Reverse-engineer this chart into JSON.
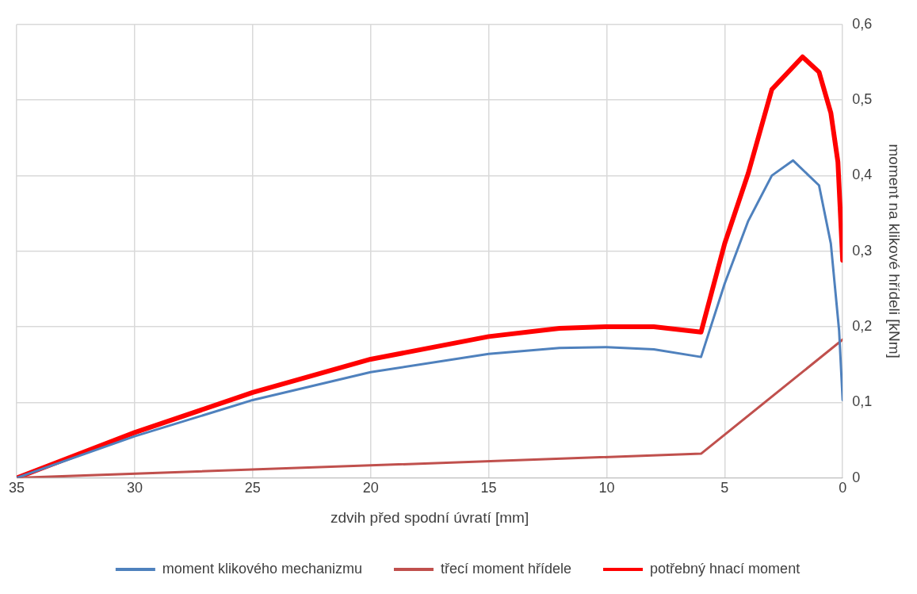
{
  "chart_data": {
    "type": "line",
    "xlabel": "zdvih před spodní úvratí [mm]",
    "y2label": "moment na klikové hřídeli [kNm]",
    "xlim": [
      35,
      0
    ],
    "xticks": [
      35,
      30,
      25,
      20,
      15,
      10,
      5,
      0
    ],
    "y2lim": [
      0,
      0.6
    ],
    "y2ticks": [
      0,
      {
        "value": 0.1,
        "label": "0,1"
      },
      {
        "value": 0.2,
        "label": "0,2"
      },
      {
        "value": 0.3,
        "label": "0,3"
      },
      {
        "value": 0.4,
        "label": "0,4"
      },
      {
        "value": 0.5,
        "label": "0,5"
      },
      {
        "value": 0.6,
        "label": "0,6"
      }
    ],
    "grid": true,
    "legend": "bottom",
    "marker": "none",
    "line_style": "solid",
    "series": [
      {
        "name": "moment klikového mechanizmu",
        "color": "#4f81bd",
        "axis": "y2",
        "x": [
          35,
          30,
          25,
          20,
          15,
          12,
          10,
          8,
          6,
          5,
          4,
          3,
          2.1,
          1,
          0.5,
          0.15,
          0
        ],
        "values": [
          0,
          0.055,
          0.103,
          0.14,
          0.164,
          0.172,
          0.173,
          0.17,
          0.16,
          0.257,
          0.34,
          0.4,
          0.42,
          0.387,
          0.31,
          0.195,
          0.103
        ]
      },
      {
        "name": "třecí moment hřídele",
        "color": "#c0504d",
        "axis": "y2",
        "x": [
          35,
          6,
          0
        ],
        "values": [
          0,
          0.032,
          0.183
        ]
      },
      {
        "name": "potřebný hnací moment",
        "color": "#ff0000",
        "axis": "y2",
        "x": [
          35,
          30,
          25,
          20,
          15,
          12,
          10,
          8,
          6,
          5,
          4,
          3,
          1.7,
          1,
          0.5,
          0.2,
          0
        ],
        "values": [
          0,
          0.06,
          0.113,
          0.157,
          0.187,
          0.198,
          0.2,
          0.2,
          0.193,
          0.31,
          0.403,
          0.514,
          0.557,
          0.537,
          0.483,
          0.418,
          0.288
        ]
      }
    ]
  }
}
